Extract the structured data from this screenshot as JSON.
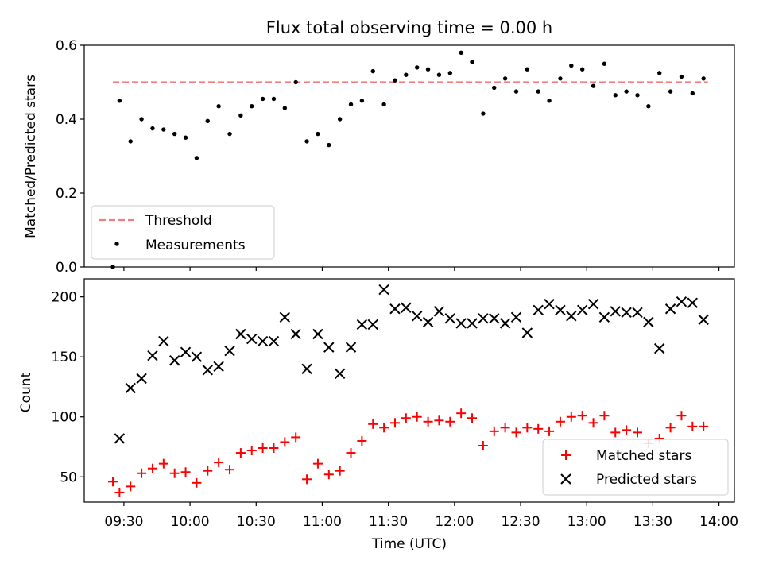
{
  "chart_data": [
    {
      "type": "scatter",
      "title": "Flux total observing time = 0.00 h",
      "xlabel": "",
      "ylabel": "Matched/Predicted stars",
      "ylim": [
        0,
        0.6
      ],
      "yticks": [
        0.0,
        0.2,
        0.4,
        0.6
      ],
      "ytick_labels": [
        "0.0",
        "0.2",
        "0.4",
        "0.6"
      ],
      "grid": false,
      "legend_position": "lower-left",
      "legend": [
        "Threshold",
        "Measurements"
      ],
      "threshold": {
        "name": "Threshold",
        "value": 0.5,
        "x_range": [
          "09:25",
          "13:55"
        ],
        "color": "#f08080"
      },
      "series": [
        {
          "name": "Measurements",
          "color": "#000000",
          "x": [
            "09:25",
            "09:28",
            "09:33",
            "09:38",
            "09:43",
            "09:48",
            "09:53",
            "09:58",
            "10:03",
            "10:08",
            "10:13",
            "10:18",
            "10:23",
            "10:28",
            "10:33",
            "10:38",
            "10:43",
            "10:48",
            "10:53",
            "10:58",
            "11:03",
            "11:08",
            "11:13",
            "11:18",
            "11:23",
            "11:28",
            "11:33",
            "11:38",
            "11:43",
            "11:48",
            "11:53",
            "11:58",
            "12:03",
            "12:08",
            "12:13",
            "12:18",
            "12:23",
            "12:28",
            "12:33",
            "12:38",
            "12:43",
            "12:48",
            "12:53",
            "12:58",
            "13:03",
            "13:08",
            "13:13",
            "13:18",
            "13:23",
            "13:28",
            "13:33",
            "13:38",
            "13:43",
            "13:48",
            "13:53"
          ],
          "y": [
            0.0,
            0.45,
            0.34,
            0.4,
            0.375,
            0.372,
            0.36,
            0.35,
            0.295,
            0.395,
            0.435,
            0.36,
            0.41,
            0.435,
            0.455,
            0.455,
            0.43,
            0.5,
            0.34,
            0.36,
            0.33,
            0.4,
            0.44,
            0.45,
            0.53,
            0.44,
            0.505,
            0.52,
            0.54,
            0.535,
            0.52,
            0.525,
            0.58,
            0.555,
            0.415,
            0.485,
            0.51,
            0.475,
            0.535,
            0.475,
            0.45,
            0.51,
            0.545,
            0.535,
            0.49,
            0.55,
            0.465,
            0.475,
            0.465,
            0.435,
            0.525,
            0.475,
            0.515,
            0.47,
            0.51
          ]
        }
      ]
    },
    {
      "type": "scatter",
      "title": "",
      "xlabel": "Time (UTC)",
      "ylabel": "Count",
      "xlim": [
        "09:12",
        "14:07"
      ],
      "xticks": [
        "09:30",
        "10:00",
        "10:30",
        "11:00",
        "11:30",
        "12:00",
        "12:30",
        "13:00",
        "13:30",
        "14:00"
      ],
      "ylim": [
        29,
        215
      ],
      "yticks": [
        50,
        100,
        150,
        200
      ],
      "grid": false,
      "legend_position": "lower-right",
      "legend": [
        "Matched stars",
        "Predicted stars"
      ],
      "series": [
        {
          "name": "Matched stars",
          "marker": "plus",
          "color": "#ff0000",
          "x": [
            "09:25",
            "09:28",
            "09:33",
            "09:38",
            "09:43",
            "09:48",
            "09:53",
            "09:58",
            "10:03",
            "10:08",
            "10:13",
            "10:18",
            "10:23",
            "10:28",
            "10:33",
            "10:38",
            "10:43",
            "10:48",
            "10:53",
            "10:58",
            "11:03",
            "11:08",
            "11:13",
            "11:18",
            "11:23",
            "11:28",
            "11:33",
            "11:38",
            "11:43",
            "11:48",
            "11:53",
            "11:58",
            "12:03",
            "12:08",
            "12:13",
            "12:18",
            "12:23",
            "12:28",
            "12:33",
            "12:38",
            "12:43",
            "12:48",
            "12:53",
            "12:58",
            "13:03",
            "13:08",
            "13:13",
            "13:18",
            "13:23",
            "13:28",
            "13:33",
            "13:38",
            "13:43",
            "13:48",
            "13:53"
          ],
          "y": [
            46,
            37,
            42,
            53,
            57,
            61,
            53,
            54,
            45,
            55,
            62,
            56,
            70,
            72,
            74,
            74,
            79,
            83,
            48,
            61,
            52,
            55,
            70,
            80,
            94,
            91,
            95,
            99,
            100,
            96,
            97,
            96,
            103,
            99,
            76,
            88,
            91,
            87,
            91,
            90,
            88,
            96,
            100,
            101,
            95,
            101,
            87,
            89,
            87,
            78,
            82,
            91,
            101,
            92,
            92
          ]
        },
        {
          "name": "Predicted stars",
          "marker": "x",
          "color": "#000000",
          "x": [
            "09:28",
            "09:33",
            "09:38",
            "09:43",
            "09:48",
            "09:53",
            "09:58",
            "10:03",
            "10:08",
            "10:13",
            "10:18",
            "10:23",
            "10:28",
            "10:33",
            "10:38",
            "10:43",
            "10:48",
            "10:53",
            "10:58",
            "11:03",
            "11:08",
            "11:13",
            "11:18",
            "11:23",
            "11:28",
            "11:33",
            "11:38",
            "11:43",
            "11:48",
            "11:53",
            "11:58",
            "12:03",
            "12:08",
            "12:13",
            "12:18",
            "12:23",
            "12:28",
            "12:33",
            "12:38",
            "12:43",
            "12:48",
            "12:53",
            "12:58",
            "13:03",
            "13:08",
            "13:13",
            "13:18",
            "13:23",
            "13:28",
            "13:33",
            "13:38",
            "13:43",
            "13:48",
            "13:53"
          ],
          "y": [
            82,
            124,
            132,
            151,
            163,
            147,
            154,
            150,
            139,
            142,
            155,
            169,
            165,
            163,
            163,
            183,
            169,
            140,
            169,
            158,
            136,
            158,
            177,
            177,
            206,
            190,
            191,
            184,
            179,
            188,
            182,
            178,
            178,
            182,
            182,
            178,
            183,
            170,
            189,
            194,
            189,
            184,
            189,
            194,
            183,
            188,
            187,
            187,
            179,
            157,
            190,
            196,
            195,
            181
          ]
        }
      ]
    }
  ]
}
